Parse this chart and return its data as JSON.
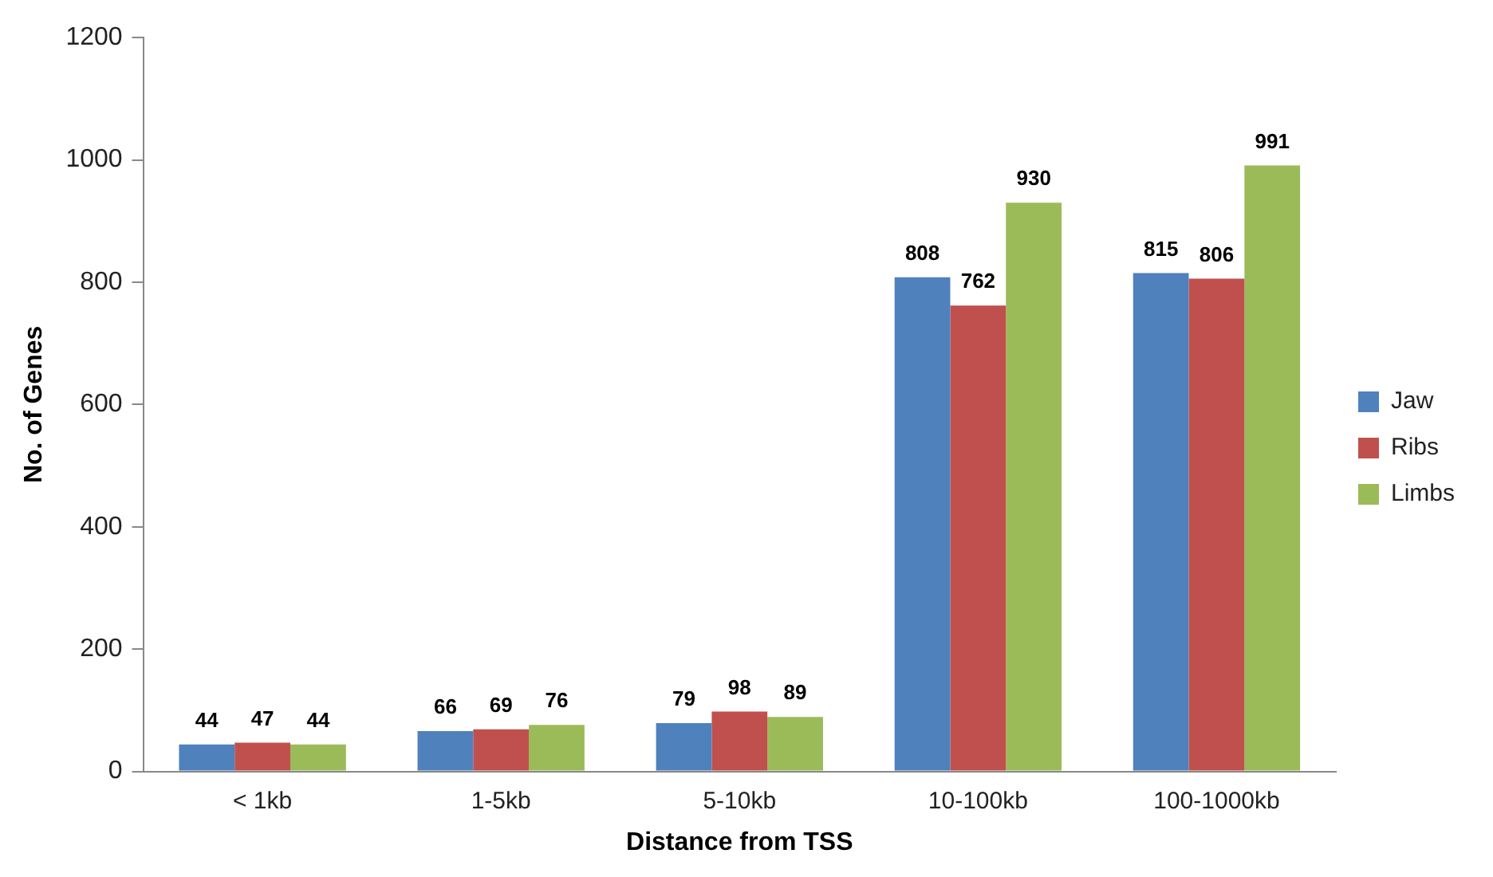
{
  "chart_data": {
    "type": "bar",
    "xlabel": "Distance from TSS",
    "ylabel": "No. of Genes",
    "categories": [
      "< 1kb",
      "1-5kb",
      "5-10kb",
      "10-100kb",
      "100-1000kb"
    ],
    "series": [
      {
        "name": "Jaw",
        "color": "#4f81bd",
        "values": [
          44,
          66,
          79,
          808,
          815
        ]
      },
      {
        "name": "Ribs",
        "color": "#c0504d",
        "values": [
          47,
          69,
          98,
          762,
          806
        ]
      },
      {
        "name": "Limbs",
        "color": "#9bbb59",
        "values": [
          44,
          76,
          89,
          930,
          991
        ]
      }
    ],
    "ylim": [
      0,
      1200
    ],
    "yticks": [
      0,
      200,
      400,
      600,
      800,
      1000,
      1200
    ],
    "grid": false,
    "legend": "right",
    "data_labels": true
  }
}
